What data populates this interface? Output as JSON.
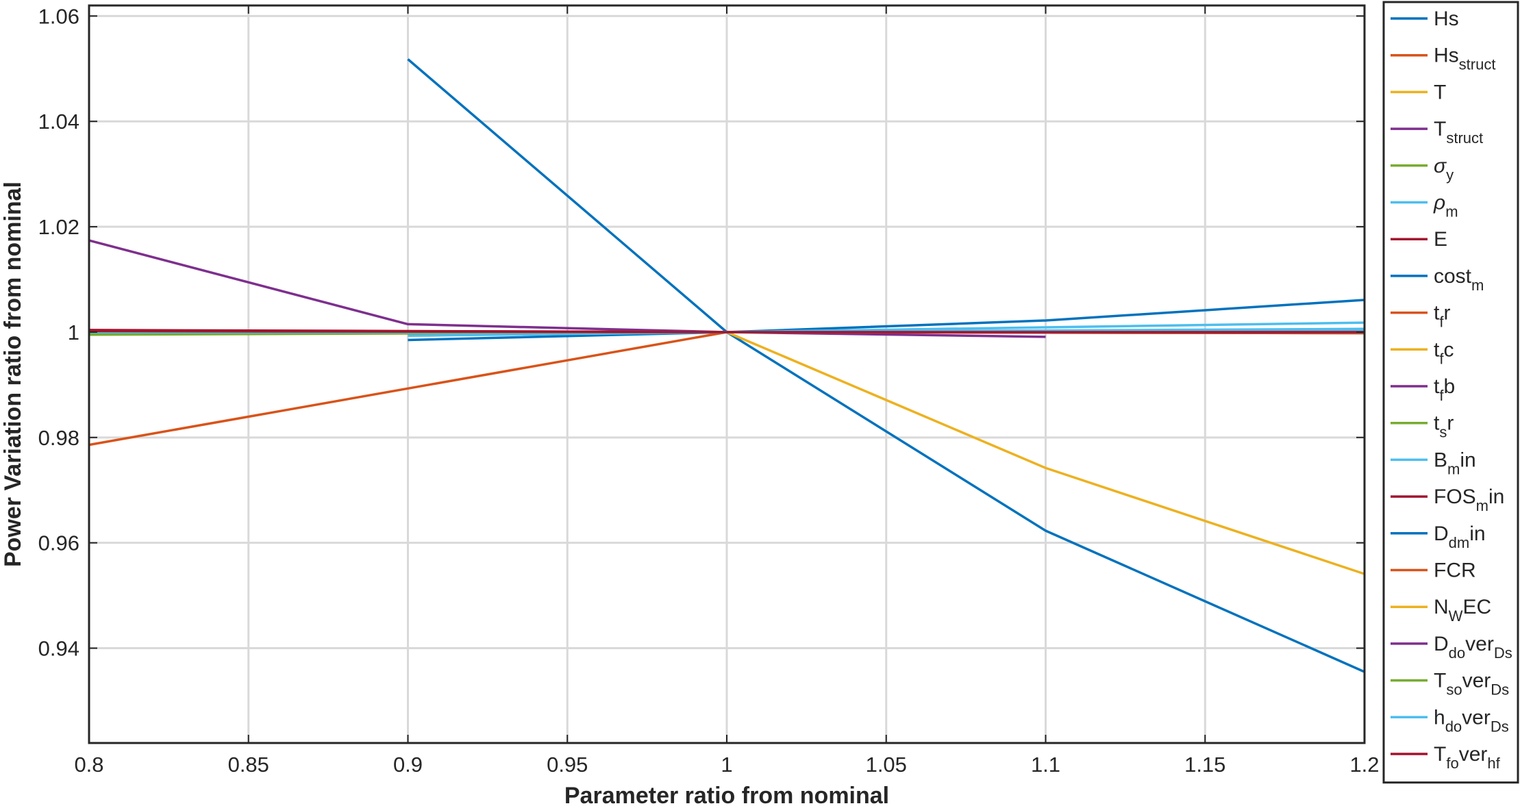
{
  "chart_data": {
    "type": "line",
    "title": "",
    "xlabel": "Parameter ratio from nominal",
    "ylabel": "Power Variation ratio from nominal",
    "xlim": [
      0.8,
      1.2
    ],
    "ylim": [
      0.922,
      1.062
    ],
    "xticks": [
      "0.8",
      "0.85",
      "0.9",
      "0.95",
      "1",
      "1.05",
      "1.1",
      "1.15",
      "1.2"
    ],
    "yticks": [
      "0.94",
      "0.96",
      "0.98",
      "1",
      "1.02",
      "1.04",
      "1.06"
    ],
    "grid": true,
    "legend_position": "right-outside",
    "series": [
      {
        "name": "Hs",
        "legend": {
          "base": "Hs",
          "sub": "",
          "tail": ""
        },
        "color": "#0072BD",
        "x": [
          0.9,
          1.0,
          1.1,
          1.2
        ],
        "y": [
          0.9985,
          1.0,
          1.0022,
          1.0061
        ]
      },
      {
        "name": "Hs_struct",
        "legend": {
          "base": "Hs",
          "sub": "struct",
          "tail": ""
        },
        "color": "#D95319",
        "x": [
          0.8,
          1.0,
          1.2
        ],
        "y": [
          1.0003,
          1.0,
          0.9999
        ]
      },
      {
        "name": "T",
        "legend": {
          "base": "T",
          "sub": "",
          "tail": ""
        },
        "color": "#EDB120",
        "x": [
          0.8,
          1.0,
          1.2
        ],
        "y": [
          1.0002,
          1.0,
          0.9998
        ]
      },
      {
        "name": "T_struct",
        "legend": {
          "base": "T",
          "sub": "struct",
          "tail": ""
        },
        "color": "#7E2F8E",
        "x": [
          0.8,
          0.9,
          1.0,
          1.1
        ],
        "y": [
          1.0174,
          1.0015,
          1.0,
          0.9991
        ]
      },
      {
        "name": "σ_y",
        "legend": {
          "base": "σ",
          "sub": "y",
          "tail": ""
        },
        "color": "#77AC30",
        "x": [
          0.8,
          1.0,
          1.2
        ],
        "y": [
          0.9995,
          1.0,
          1.0004
        ]
      },
      {
        "name": "ρ_m",
        "legend": {
          "base": "ρ",
          "sub": "m",
          "tail": ""
        },
        "color": "#4DBEEE",
        "x": [
          0.9,
          1.0,
          1.1,
          1.2
        ],
        "y": [
          0.9993,
          1.0,
          1.0009,
          1.0018
        ]
      },
      {
        "name": "E",
        "legend": {
          "base": "E",
          "sub": "",
          "tail": ""
        },
        "color": "#A2142F",
        "x": [
          0.8,
          1.0,
          1.2
        ],
        "y": [
          1.0004,
          1.0,
          0.9998
        ]
      },
      {
        "name": "cost_m",
        "legend": {
          "base": "cost",
          "sub": "m",
          "tail": ""
        },
        "color": "#0072BD",
        "x": [
          0.9,
          1.0,
          1.1,
          1.2
        ],
        "y": [
          1.0518,
          1.0,
          0.9623,
          0.9355
        ]
      },
      {
        "name": "t_fr",
        "legend": {
          "base": "t",
          "sub": "f",
          "tail": "r"
        },
        "color": "#D95319",
        "x": [
          0.8,
          1.0
        ],
        "y": [
          0.9786,
          1.0
        ]
      },
      {
        "name": "t_fc",
        "legend": {
          "base": "t",
          "sub": "f",
          "tail": "c"
        },
        "color": "#EDB120",
        "x": [
          1.0,
          1.1,
          1.2
        ],
        "y": [
          1.0,
          0.9742,
          0.9541
        ]
      },
      {
        "name": "t_fb",
        "legend": {
          "base": "t",
          "sub": "f",
          "tail": "b"
        },
        "color": "#7E2F8E",
        "x": [
          0.8,
          1.0,
          1.2
        ],
        "y": [
          1.0001,
          1.0,
          0.9999
        ]
      },
      {
        "name": "t_sr",
        "legend": {
          "base": "t",
          "sub": "s",
          "tail": "r"
        },
        "color": "#77AC30",
        "x": [
          0.8,
          1.0,
          1.2
        ],
        "y": [
          0.9998,
          1.0,
          1.0001
        ]
      },
      {
        "name": "B_min",
        "legend": {
          "base": "B",
          "sub": "m",
          "tail": "in"
        },
        "color": "#4DBEEE",
        "x": [
          0.8,
          1.0,
          1.2
        ],
        "y": [
          0.9999,
          1.0,
          1.0006
        ]
      },
      {
        "name": "FOS_min",
        "legend": {
          "base": "FOS",
          "sub": "m",
          "tail": "in"
        },
        "color": "#A2142F",
        "x": [
          0.8,
          1.0,
          1.2
        ],
        "y": [
          1.0003,
          1.0,
          0.9999
        ]
      },
      {
        "name": "D_dmin",
        "legend": {
          "base": "D",
          "sub": "dm",
          "tail": "in"
        },
        "color": "#0072BD",
        "x": [
          0.8,
          1.0,
          1.2
        ],
        "y": [
          1.0001,
          1.0,
          1.0002
        ]
      },
      {
        "name": "FCR",
        "legend": {
          "base": "FCR",
          "sub": "",
          "tail": ""
        },
        "color": "#D95319",
        "x": [
          0.8,
          1.0,
          1.2
        ],
        "y": [
          1.0,
          1.0,
          1.0
        ]
      },
      {
        "name": "N_WEC",
        "legend": {
          "base": "N",
          "sub": "W",
          "tail": "EC"
        },
        "color": "#EDB120",
        "x": [
          0.8,
          1.0,
          1.2
        ],
        "y": [
          1.0,
          1.0,
          0.9999
        ]
      },
      {
        "name": "D_dover_Ds",
        "legend": {
          "base": "D",
          "sub": "do",
          "tail": "ver",
          "sub2": "Ds"
        },
        "color": "#7E2F8E",
        "x": [
          0.8,
          1.0,
          1.2
        ],
        "y": [
          1.0001,
          1.0,
          1.0
        ]
      },
      {
        "name": "T_sover_Ds",
        "legend": {
          "base": "T",
          "sub": "so",
          "tail": "ver",
          "sub2": "Ds"
        },
        "color": "#77AC30",
        "x": [
          0.8,
          1.0,
          1.2
        ],
        "y": [
          0.9999,
          1.0,
          1.0001
        ]
      },
      {
        "name": "h_dover_Ds",
        "legend": {
          "base": "h",
          "sub": "do",
          "tail": "ver",
          "sub2": "Ds"
        },
        "color": "#4DBEEE",
        "x": [
          0.8,
          1.0,
          1.2
        ],
        "y": [
          1.0,
          1.0,
          1.0003
        ]
      },
      {
        "name": "T_fover_hf",
        "legend": {
          "base": "T",
          "sub": "fo",
          "tail": "ver",
          "sub2": "hf"
        },
        "color": "#A2142F",
        "x": [
          0.8,
          1.0,
          1.2
        ],
        "y": [
          1.0002,
          1.0,
          1.0
        ]
      }
    ]
  }
}
